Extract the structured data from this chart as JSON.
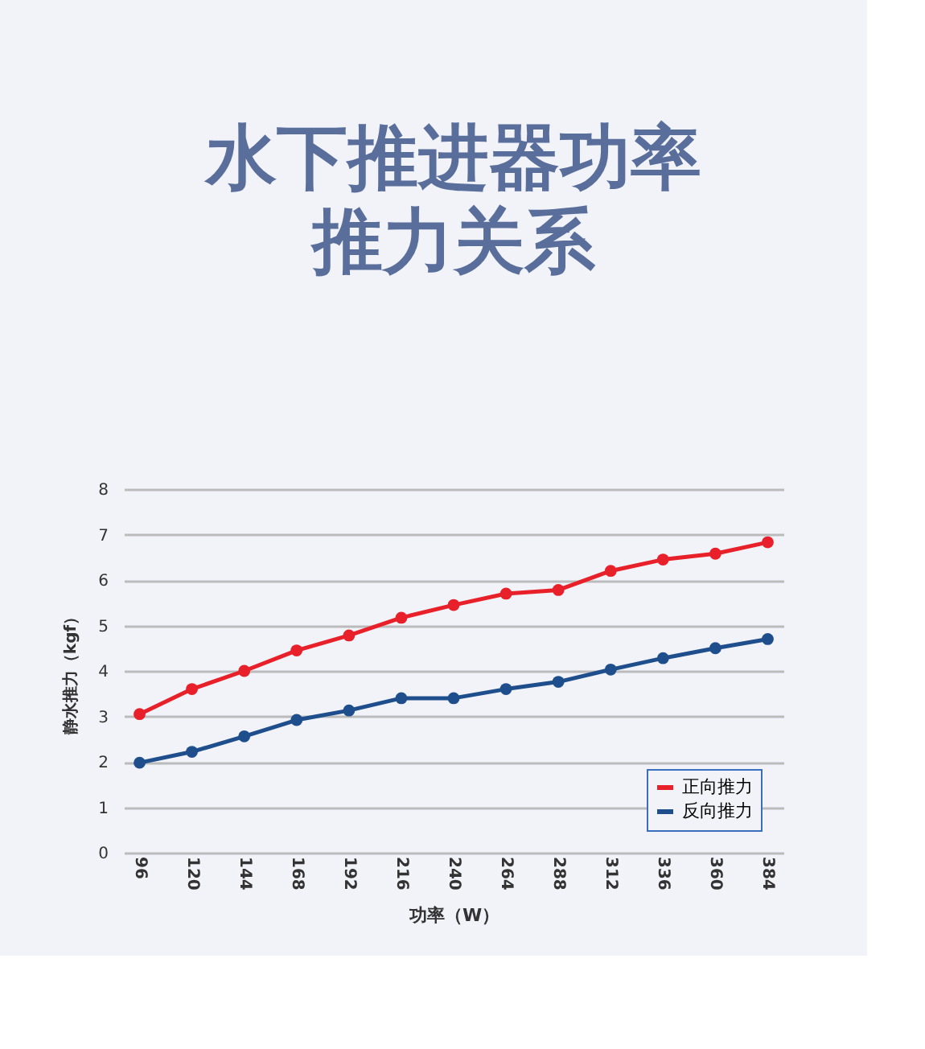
{
  "chart_data": {
    "type": "line",
    "title": [
      "水下推进器功率",
      "推力关系"
    ],
    "xlabel": "功率（W）",
    "ylabel": "静水推力（kgf）",
    "categories": [
      "96",
      "120",
      "144",
      "168",
      "192",
      "216",
      "240",
      "264",
      "288",
      "312",
      "336",
      "360",
      "384"
    ],
    "series": [
      {
        "name": "正向推力",
        "color": "#e8202a",
        "values": [
          3.05,
          3.6,
          4.0,
          4.45,
          4.78,
          5.17,
          5.45,
          5.7,
          5.78,
          6.2,
          6.45,
          6.58,
          6.83
        ]
      },
      {
        "name": "反向推力",
        "color": "#1f4e8c",
        "values": [
          1.98,
          2.22,
          2.56,
          2.92,
          3.13,
          3.4,
          3.4,
          3.6,
          3.76,
          4.03,
          4.28,
          4.5,
          4.7
        ]
      }
    ],
    "ylim": [
      0,
      8
    ],
    "yticks": [
      0,
      1,
      2,
      3,
      4,
      5,
      6,
      7,
      8
    ],
    "grid": "y",
    "legend": "bottom right",
    "marker": "circle",
    "line_style": "solid"
  }
}
